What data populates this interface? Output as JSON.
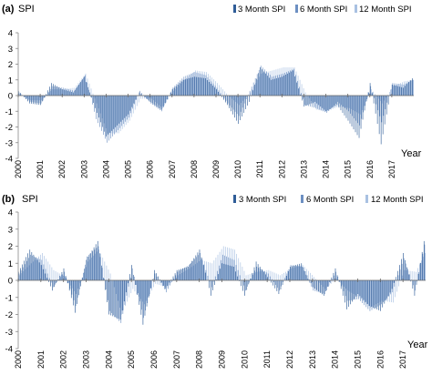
{
  "chart_data": [
    {
      "type": "bar",
      "panel_label": "(a)",
      "ylabel": "SPI",
      "xlabel": "Year",
      "ylim": [
        -4,
        4
      ],
      "yticks": [
        -4,
        -3,
        -2,
        -1,
        0,
        1,
        2,
        3,
        4
      ],
      "xlim": [
        2000,
        2018
      ],
      "year_ticks": [
        "2000",
        "2001",
        "2002",
        "2003",
        "2004",
        "2005",
        "2006",
        "2007",
        "2008",
        "2009",
        "2010",
        "2011",
        "2012",
        "2013",
        "2014",
        "2015",
        "2016",
        "2017"
      ],
      "grid": false,
      "legend_position": "top-right",
      "legend": [
        "3 Month SPI",
        "6 Month SPI",
        "12 Month SPI"
      ],
      "series_colors": [
        "#2f5d98",
        "#6c8fc2",
        "#a9c1e2"
      ],
      "resolution": "monthly",
      "series": [
        {
          "name": "3 Month SPI",
          "x": [
            "2000-01",
            "2000-07",
            "2001-01",
            "2001-07",
            "2002-01",
            "2002-07",
            "2003-01",
            "2003-07",
            "2004-01",
            "2004-07",
            "2005-01",
            "2005-07",
            "2006-01",
            "2006-07",
            "2007-01",
            "2007-07",
            "2008-01",
            "2008-07",
            "2009-01",
            "2009-07",
            "2010-01",
            "2010-07",
            "2011-01",
            "2011-07",
            "2012-01",
            "2012-07",
            "2013-01",
            "2013-07",
            "2014-01",
            "2014-07",
            "2015-01",
            "2015-07",
            "2016-01",
            "2016-07",
            "2017-01",
            "2017-07",
            "2017-12"
          ],
          "values": [
            0.3,
            -0.5,
            -0.6,
            0.8,
            0.4,
            0.2,
            1.2,
            -0.8,
            -2.6,
            -1.9,
            -1.2,
            0.2,
            -0.4,
            -0.9,
            0.4,
            1.0,
            1.2,
            1.1,
            0.4,
            -0.6,
            -1.8,
            -0.4,
            1.8,
            1.0,
            1.2,
            1.6,
            -0.7,
            -0.4,
            -1.0,
            -0.6,
            -1.6,
            -2.7,
            0.8,
            -3.1,
            0.7,
            0.5,
            1.1
          ]
        },
        {
          "name": "6 Month SPI",
          "x": [
            "2000-01",
            "2000-07",
            "2001-01",
            "2001-07",
            "2002-01",
            "2002-07",
            "2003-01",
            "2003-07",
            "2004-01",
            "2004-07",
            "2005-01",
            "2005-07",
            "2006-01",
            "2006-07",
            "2007-01",
            "2007-07",
            "2008-01",
            "2008-07",
            "2009-01",
            "2009-07",
            "2010-01",
            "2010-07",
            "2011-01",
            "2011-07",
            "2012-01",
            "2012-07",
            "2013-01",
            "2013-07",
            "2014-01",
            "2014-07",
            "2015-01",
            "2015-07",
            "2016-01",
            "2016-07",
            "2017-01",
            "2017-07",
            "2017-12"
          ],
          "values": [
            0.2,
            -0.4,
            -0.5,
            0.6,
            0.5,
            0.3,
            1.3,
            -1.5,
            -3.0,
            -2.2,
            -1.4,
            0.3,
            -0.5,
            -1.0,
            0.5,
            1.2,
            1.5,
            1.3,
            0.5,
            -0.5,
            -1.3,
            0.3,
            1.9,
            1.2,
            1.4,
            1.7,
            -0.6,
            -0.8,
            -1.1,
            -0.4,
            -1.0,
            -1.9,
            0.6,
            -1.7,
            0.8,
            0.7,
            1.0
          ]
        },
        {
          "name": "12 Month SPI",
          "x": [
            "2000-01",
            "2000-07",
            "2001-01",
            "2001-07",
            "2002-01",
            "2002-07",
            "2003-01",
            "2003-07",
            "2004-01",
            "2004-07",
            "2005-01",
            "2005-07",
            "2006-01",
            "2006-07",
            "2007-01",
            "2007-07",
            "2008-01",
            "2008-07",
            "2009-01",
            "2009-07",
            "2010-01",
            "2010-07",
            "2011-01",
            "2011-07",
            "2012-01",
            "2012-07",
            "2013-01",
            "2013-07",
            "2014-01",
            "2014-07",
            "2015-01",
            "2015-07",
            "2016-01",
            "2016-07",
            "2017-01",
            "2017-07",
            "2017-12"
          ],
          "values": [
            0.1,
            -0.3,
            -0.3,
            0.4,
            0.4,
            0.5,
            1.4,
            -0.5,
            -2.4,
            -2.4,
            -1.6,
            -0.2,
            -0.2,
            -0.8,
            0.3,
            1.0,
            1.6,
            1.5,
            0.8,
            0.0,
            -0.6,
            0.2,
            1.4,
            1.6,
            1.8,
            1.8,
            0.2,
            -0.9,
            -1.0,
            -0.7,
            -0.8,
            -1.2,
            0.4,
            -0.5,
            0.6,
            0.9,
            1.0
          ]
        }
      ]
    },
    {
      "type": "bar",
      "panel_label": "(b)",
      "ylabel": "SPI",
      "xlabel": "Year",
      "ylim": [
        -4,
        4
      ],
      "yticks": [
        -4,
        -3,
        -2,
        -1,
        0,
        1,
        2,
        3,
        4
      ],
      "xlim": [
        2000,
        2018
      ],
      "year_ticks": [
        "2000",
        "2001",
        "2002",
        "2003",
        "2004",
        "2005",
        "2006",
        "2007",
        "2008",
        "2009",
        "2010",
        "2011",
        "2012",
        "2013",
        "2014",
        "2015",
        "2016",
        "2017"
      ],
      "grid": false,
      "legend_position": "top-right",
      "legend": [
        "3 Month SPI",
        "6 Month SPI",
        "12 Month SPI"
      ],
      "series_colors": [
        "#2f5d98",
        "#6c8fc2",
        "#a9c1e2"
      ],
      "resolution": "monthly",
      "series": [
        {
          "name": "3 Month SPI",
          "x": [
            "2000-01",
            "2000-07",
            "2001-01",
            "2001-07",
            "2002-01",
            "2002-07",
            "2003-01",
            "2003-07",
            "2004-01",
            "2004-07",
            "2005-01",
            "2005-07",
            "2006-01",
            "2006-07",
            "2007-01",
            "2007-07",
            "2008-01",
            "2008-07",
            "2009-01",
            "2009-07",
            "2010-01",
            "2010-07",
            "2011-01",
            "2011-07",
            "2012-01",
            "2012-07",
            "2013-01",
            "2013-07",
            "2014-01",
            "2014-07",
            "2015-01",
            "2015-07",
            "2016-01",
            "2016-07",
            "2017-01",
            "2017-07",
            "2017-12"
          ],
          "values": [
            0.5,
            1.8,
            0.9,
            -0.6,
            0.7,
            -1.9,
            1.2,
            2.3,
            -2.0,
            -2.3,
            0.9,
            -2.6,
            0.6,
            -0.5,
            0.6,
            0.8,
            1.8,
            -0.9,
            1.0,
            0.8,
            -0.9,
            1.1,
            0.2,
            -0.8,
            0.8,
            1.0,
            -0.4,
            -0.9,
            0.7,
            -1.7,
            -0.8,
            -1.5,
            -1.8,
            -0.5,
            1.6,
            -0.9,
            2.3
          ]
        },
        {
          "name": "6 Month SPI",
          "x": [
            "2000-01",
            "2000-07",
            "2001-01",
            "2001-07",
            "2002-01",
            "2002-07",
            "2003-01",
            "2003-07",
            "2004-01",
            "2004-07",
            "2005-01",
            "2005-07",
            "2006-01",
            "2006-07",
            "2007-01",
            "2007-07",
            "2008-01",
            "2008-07",
            "2009-01",
            "2009-07",
            "2010-01",
            "2010-07",
            "2011-01",
            "2011-07",
            "2012-01",
            "2012-07",
            "2013-01",
            "2013-07",
            "2014-01",
            "2014-07",
            "2015-01",
            "2015-07",
            "2016-01",
            "2016-07",
            "2017-01",
            "2017-07",
            "2017-12"
          ],
          "values": [
            0.4,
            1.5,
            1.2,
            -0.4,
            0.5,
            -1.5,
            1.4,
            2.0,
            -1.8,
            -2.5,
            0.7,
            -2.2,
            0.4,
            -0.7,
            0.5,
            0.9,
            1.6,
            -0.4,
            1.5,
            1.2,
            -0.6,
            0.8,
            0.4,
            -0.6,
            0.9,
            0.8,
            -0.6,
            -0.8,
            0.5,
            -1.2,
            -1.1,
            -1.8,
            -1.4,
            -0.7,
            1.3,
            -0.6,
            2.1
          ]
        },
        {
          "name": "12 Month SPI",
          "x": [
            "2000-01",
            "2000-07",
            "2001-01",
            "2001-07",
            "2002-01",
            "2002-07",
            "2003-01",
            "2003-07",
            "2004-01",
            "2004-07",
            "2005-01",
            "2005-07",
            "2006-01",
            "2006-07",
            "2007-01",
            "2007-07",
            "2008-01",
            "2008-07",
            "2009-01",
            "2009-07",
            "2010-01",
            "2010-07",
            "2011-01",
            "2011-07",
            "2012-01",
            "2012-07",
            "2013-01",
            "2013-07",
            "2014-01",
            "2014-07",
            "2015-01",
            "2015-07",
            "2016-01",
            "2016-07",
            "2017-01",
            "2017-07",
            "2017-12"
          ],
          "values": [
            0.3,
            1.0,
            1.6,
            0.6,
            0.2,
            -0.8,
            1.1,
            1.8,
            0.4,
            -2.0,
            -0.5,
            -1.4,
            -0.2,
            -0.4,
            0.3,
            0.7,
            1.2,
            1.0,
            2.0,
            1.8,
            0.3,
            0.5,
            0.6,
            0.3,
            0.7,
            0.9,
            0.2,
            -0.5,
            0.1,
            -0.6,
            -1.0,
            -1.6,
            -1.2,
            -1.3,
            0.6,
            0.5,
            1.6
          ]
        }
      ]
    }
  ]
}
